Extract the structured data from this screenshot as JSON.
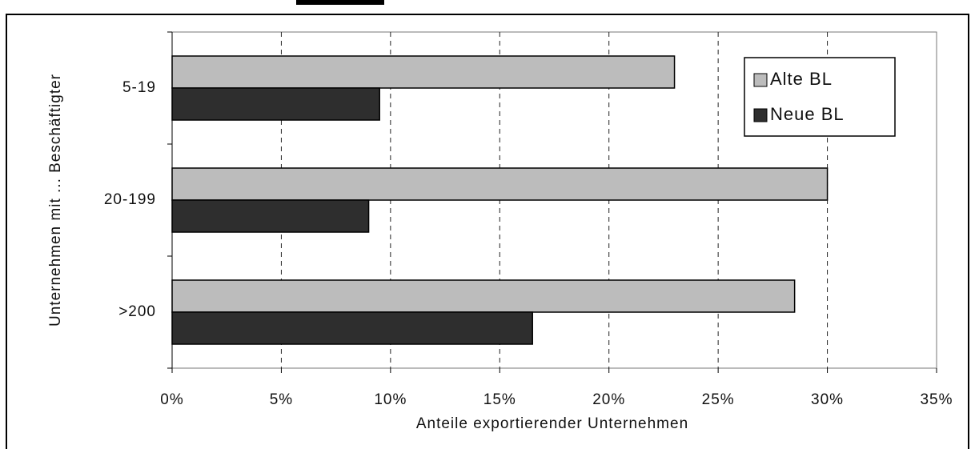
{
  "chart_data": {
    "type": "barh",
    "categories": [
      "5-19",
      "20-199",
      ">200"
    ],
    "series": [
      {
        "name": "Alte BL",
        "color": "#bcbcbc",
        "values": [
          23,
          30,
          28.5
        ]
      },
      {
        "name": "Neue BL",
        "color": "#2e2e2e",
        "values": [
          9.5,
          9,
          16.5
        ]
      }
    ],
    "xlabel": "Anteile exportierender Unternehmen",
    "ylabel": "Unternehmen mit ... Beschäftigter",
    "xlim": [
      0,
      35
    ],
    "xticks": [
      {
        "value": 0,
        "label": "0%"
      },
      {
        "value": 5,
        "label": "5%"
      },
      {
        "value": 10,
        "label": "10%"
      },
      {
        "value": 15,
        "label": "15%"
      },
      {
        "value": 20,
        "label": "20%"
      },
      {
        "value": 25,
        "label": "25%"
      },
      {
        "value": 30,
        "label": "30%"
      },
      {
        "value": 35,
        "label": "35%"
      }
    ],
    "grid": true,
    "legend": "upper right"
  }
}
